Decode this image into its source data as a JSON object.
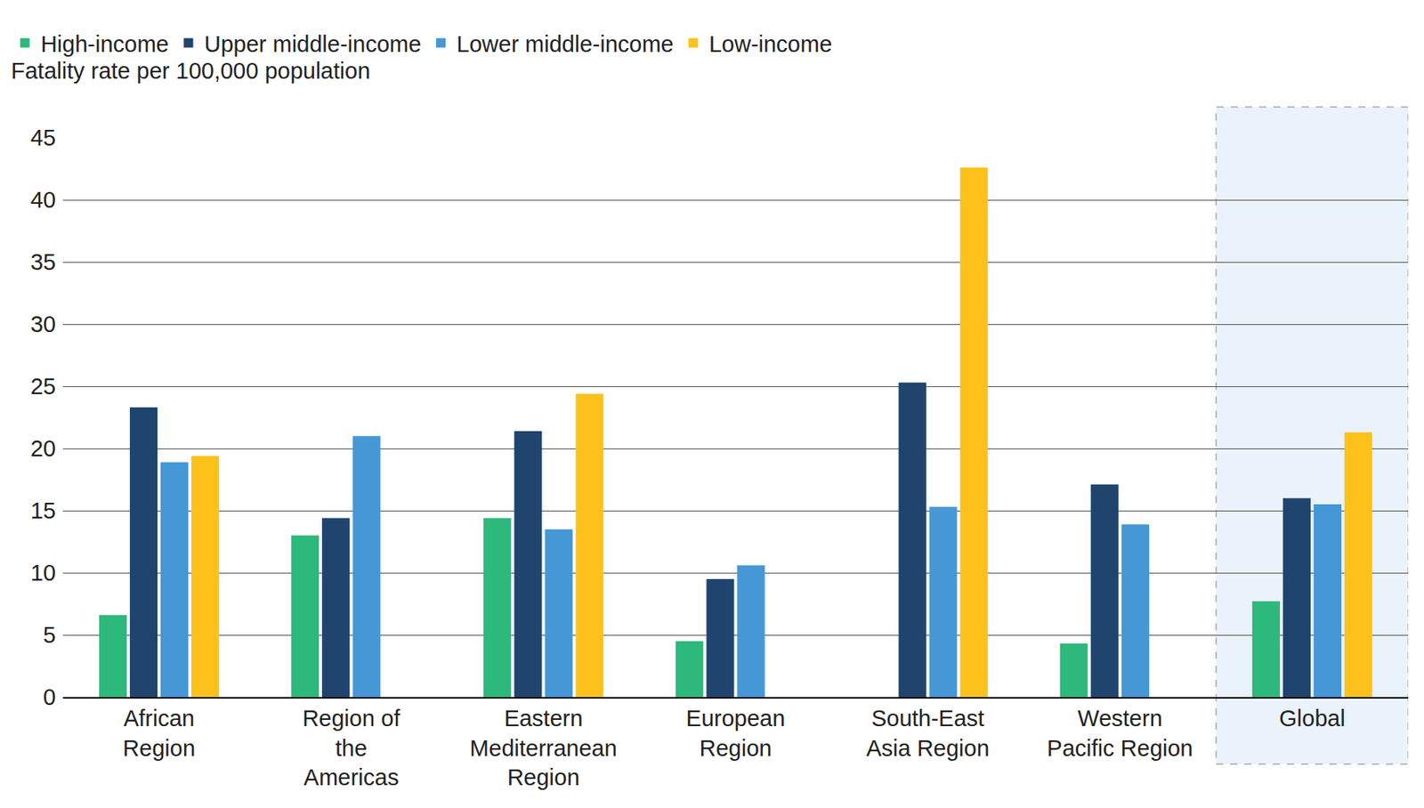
{
  "chart_data": {
    "type": "bar",
    "ylabel": "Fatality rate per 100,000 population",
    "categories": [
      "African\nRegion",
      "Region of\nthe\nAmericas",
      "Eastern\nMediterranean\nRegion",
      "European\nRegion",
      "South-East\nAsia Region",
      "Western\nPacific Region",
      "Global"
    ],
    "series": [
      {
        "name": "High-income",
        "color": "#2db87c",
        "values": [
          6.6,
          13.0,
          14.4,
          4.5,
          null,
          4.3,
          7.7
        ]
      },
      {
        "name": "Upper middle-income",
        "color": "#1f446e",
        "values": [
          23.3,
          14.4,
          21.4,
          9.5,
          25.3,
          17.1,
          16.0
        ]
      },
      {
        "name": "Lower middle-income",
        "color": "#4697d6",
        "values": [
          18.9,
          21.0,
          13.5,
          10.6,
          15.3,
          13.9,
          15.5
        ]
      },
      {
        "name": "Low-income",
        "color": "#fcc21b",
        "values": [
          19.4,
          null,
          24.4,
          null,
          42.6,
          null,
          21.3
        ]
      }
    ],
    "ylim": [
      0,
      45
    ],
    "yticks": [
      0,
      5,
      10,
      15,
      20,
      25,
      30,
      35,
      40,
      45
    ],
    "grid": true,
    "legend": "top-left"
  }
}
